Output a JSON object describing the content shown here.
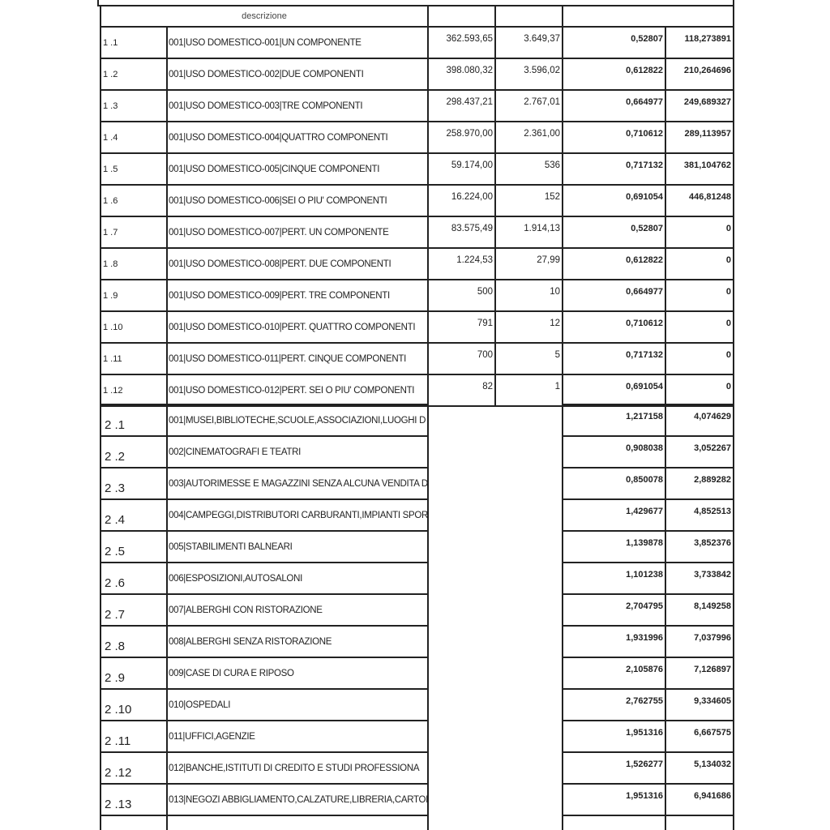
{
  "header": {
    "description_label": "descrizione"
  },
  "section1": [
    {
      "code": "1 .1",
      "desc": "001|USO DOMESTICO-001|UN COMPONENTE",
      "v1": "362.593,65",
      "v2": "3.649,37",
      "v3": "0,52807",
      "v4": "118,273891"
    },
    {
      "code": "1 .2",
      "desc": "001|USO DOMESTICO-002|DUE COMPONENTI",
      "v1": "398.080,32",
      "v2": "3.596,02",
      "v3": "0,612822",
      "v4": "210,264696"
    },
    {
      "code": "1 .3",
      "desc": "001|USO DOMESTICO-003|TRE COMPONENTI",
      "v1": "298.437,21",
      "v2": "2.767,01",
      "v3": "0,664977",
      "v4": "249,689327"
    },
    {
      "code": "1 .4",
      "desc": "001|USO DOMESTICO-004|QUATTRO COMPONENTI",
      "v1": "258.970,00",
      "v2": "2.361,00",
      "v3": "0,710612",
      "v4": "289,113957"
    },
    {
      "code": "1 .5",
      "desc": "001|USO DOMESTICO-005|CINQUE COMPONENTI",
      "v1": "59.174,00",
      "v2": "536",
      "v3": "0,717132",
      "v4": "381,104762"
    },
    {
      "code": "1 .6",
      "desc": "001|USO DOMESTICO-006|SEI O PIU' COMPONENTI",
      "v1": "16.224,00",
      "v2": "152",
      "v3": "0,691054",
      "v4": "446,81248"
    },
    {
      "code": "1 .7",
      "desc": "001|USO DOMESTICO-007|PERT. UN COMPONENTE",
      "v1": "83.575,49",
      "v2": "1.914,13",
      "v3": "0,52807",
      "v4": "0"
    },
    {
      "code": "1 .8",
      "desc": "001|USO DOMESTICO-008|PERT. DUE COMPONENTI",
      "v1": "1.224,53",
      "v2": "27,99",
      "v3": "0,612822",
      "v4": "0"
    },
    {
      "code": "1 .9",
      "desc": "001|USO DOMESTICO-009|PERT. TRE COMPONENTI",
      "v1": "500",
      "v2": "10",
      "v3": "0,664977",
      "v4": "0"
    },
    {
      "code": "1 .10",
      "desc": "001|USO DOMESTICO-010|PERT. QUATTRO COMPONENTI",
      "v1": "791",
      "v2": "12",
      "v3": "0,710612",
      "v4": "0"
    },
    {
      "code": "1 .11",
      "desc": "001|USO DOMESTICO-011|PERT. CINQUE COMPONENTI",
      "v1": "700",
      "v2": "5",
      "v3": "0,717132",
      "v4": "0"
    },
    {
      "code": "1 .12",
      "desc": "001|USO DOMESTICO-012|PERT. SEI O PIU' COMPONENTI",
      "v1": "82",
      "v2": "1",
      "v3": "0,691054",
      "v4": "0"
    }
  ],
  "section2": [
    {
      "code": "2 .1",
      "desc": "001|MUSEI,BIBLIOTECHE,SCUOLE,ASSOCIAZIONI,LUOGHI D",
      "v3": "1,217158",
      "v4": "4,074629"
    },
    {
      "code": "2 .2",
      "desc": "002|CINEMATOGRAFI E TEATRI",
      "v3": "0,908038",
      "v4": "3,052267"
    },
    {
      "code": "2 .3",
      "desc": "003|AUTORIMESSE E MAGAZZINI SENZA ALCUNA VENDITA D",
      "v3": "0,850078",
      "v4": "2,889282"
    },
    {
      "code": "2 .4",
      "desc": "004|CAMPEGGI,DISTRIBUTORI CARBURANTI,IMPIANTI SPOR",
      "v3": "1,429677",
      "v4": "4,852513"
    },
    {
      "code": "2 .5",
      "desc": "005|STABILIMENTI BALNEARI",
      "v3": "1,139878",
      "v4": "3,852376"
    },
    {
      "code": "2 .6",
      "desc": "006|ESPOSIZIONI,AUTOSALONI",
      "v3": "1,101238",
      "v4": "3,733842"
    },
    {
      "code": "2 .7",
      "desc": "007|ALBERGHI CON RISTORAZIONE",
      "v3": "2,704795",
      "v4": "8,149258"
    },
    {
      "code": "2 .8",
      "desc": "008|ALBERGHI SENZA RISTORAZIONE",
      "v3": "1,931996",
      "v4": "7,037996"
    },
    {
      "code": "2 .9",
      "desc": "009|CASE DI CURA E RIPOSO",
      "v3": "2,105876",
      "v4": "7,126897"
    },
    {
      "code": "2 .10",
      "desc": "010|OSPEDALI",
      "v3": "2,762755",
      "v4": "9,334605"
    },
    {
      "code": "2 .11",
      "desc": "011|UFFICI,AGENZIE",
      "v3": "1,951316",
      "v4": "6,667575"
    },
    {
      "code": "2 .12",
      "desc": "012|BANCHE,ISTITUTI DI CREDITO E STUDI PROFESSIONA",
      "v3": "1,526277",
      "v4": "5,134032"
    },
    {
      "code": "2 .13",
      "desc": "013|NEGOZI ABBIGLIAMENTO,CALZATURE,LIBRERIA,CARTOL",
      "v3": "1,951316",
      "v4": "6,941686"
    }
  ]
}
